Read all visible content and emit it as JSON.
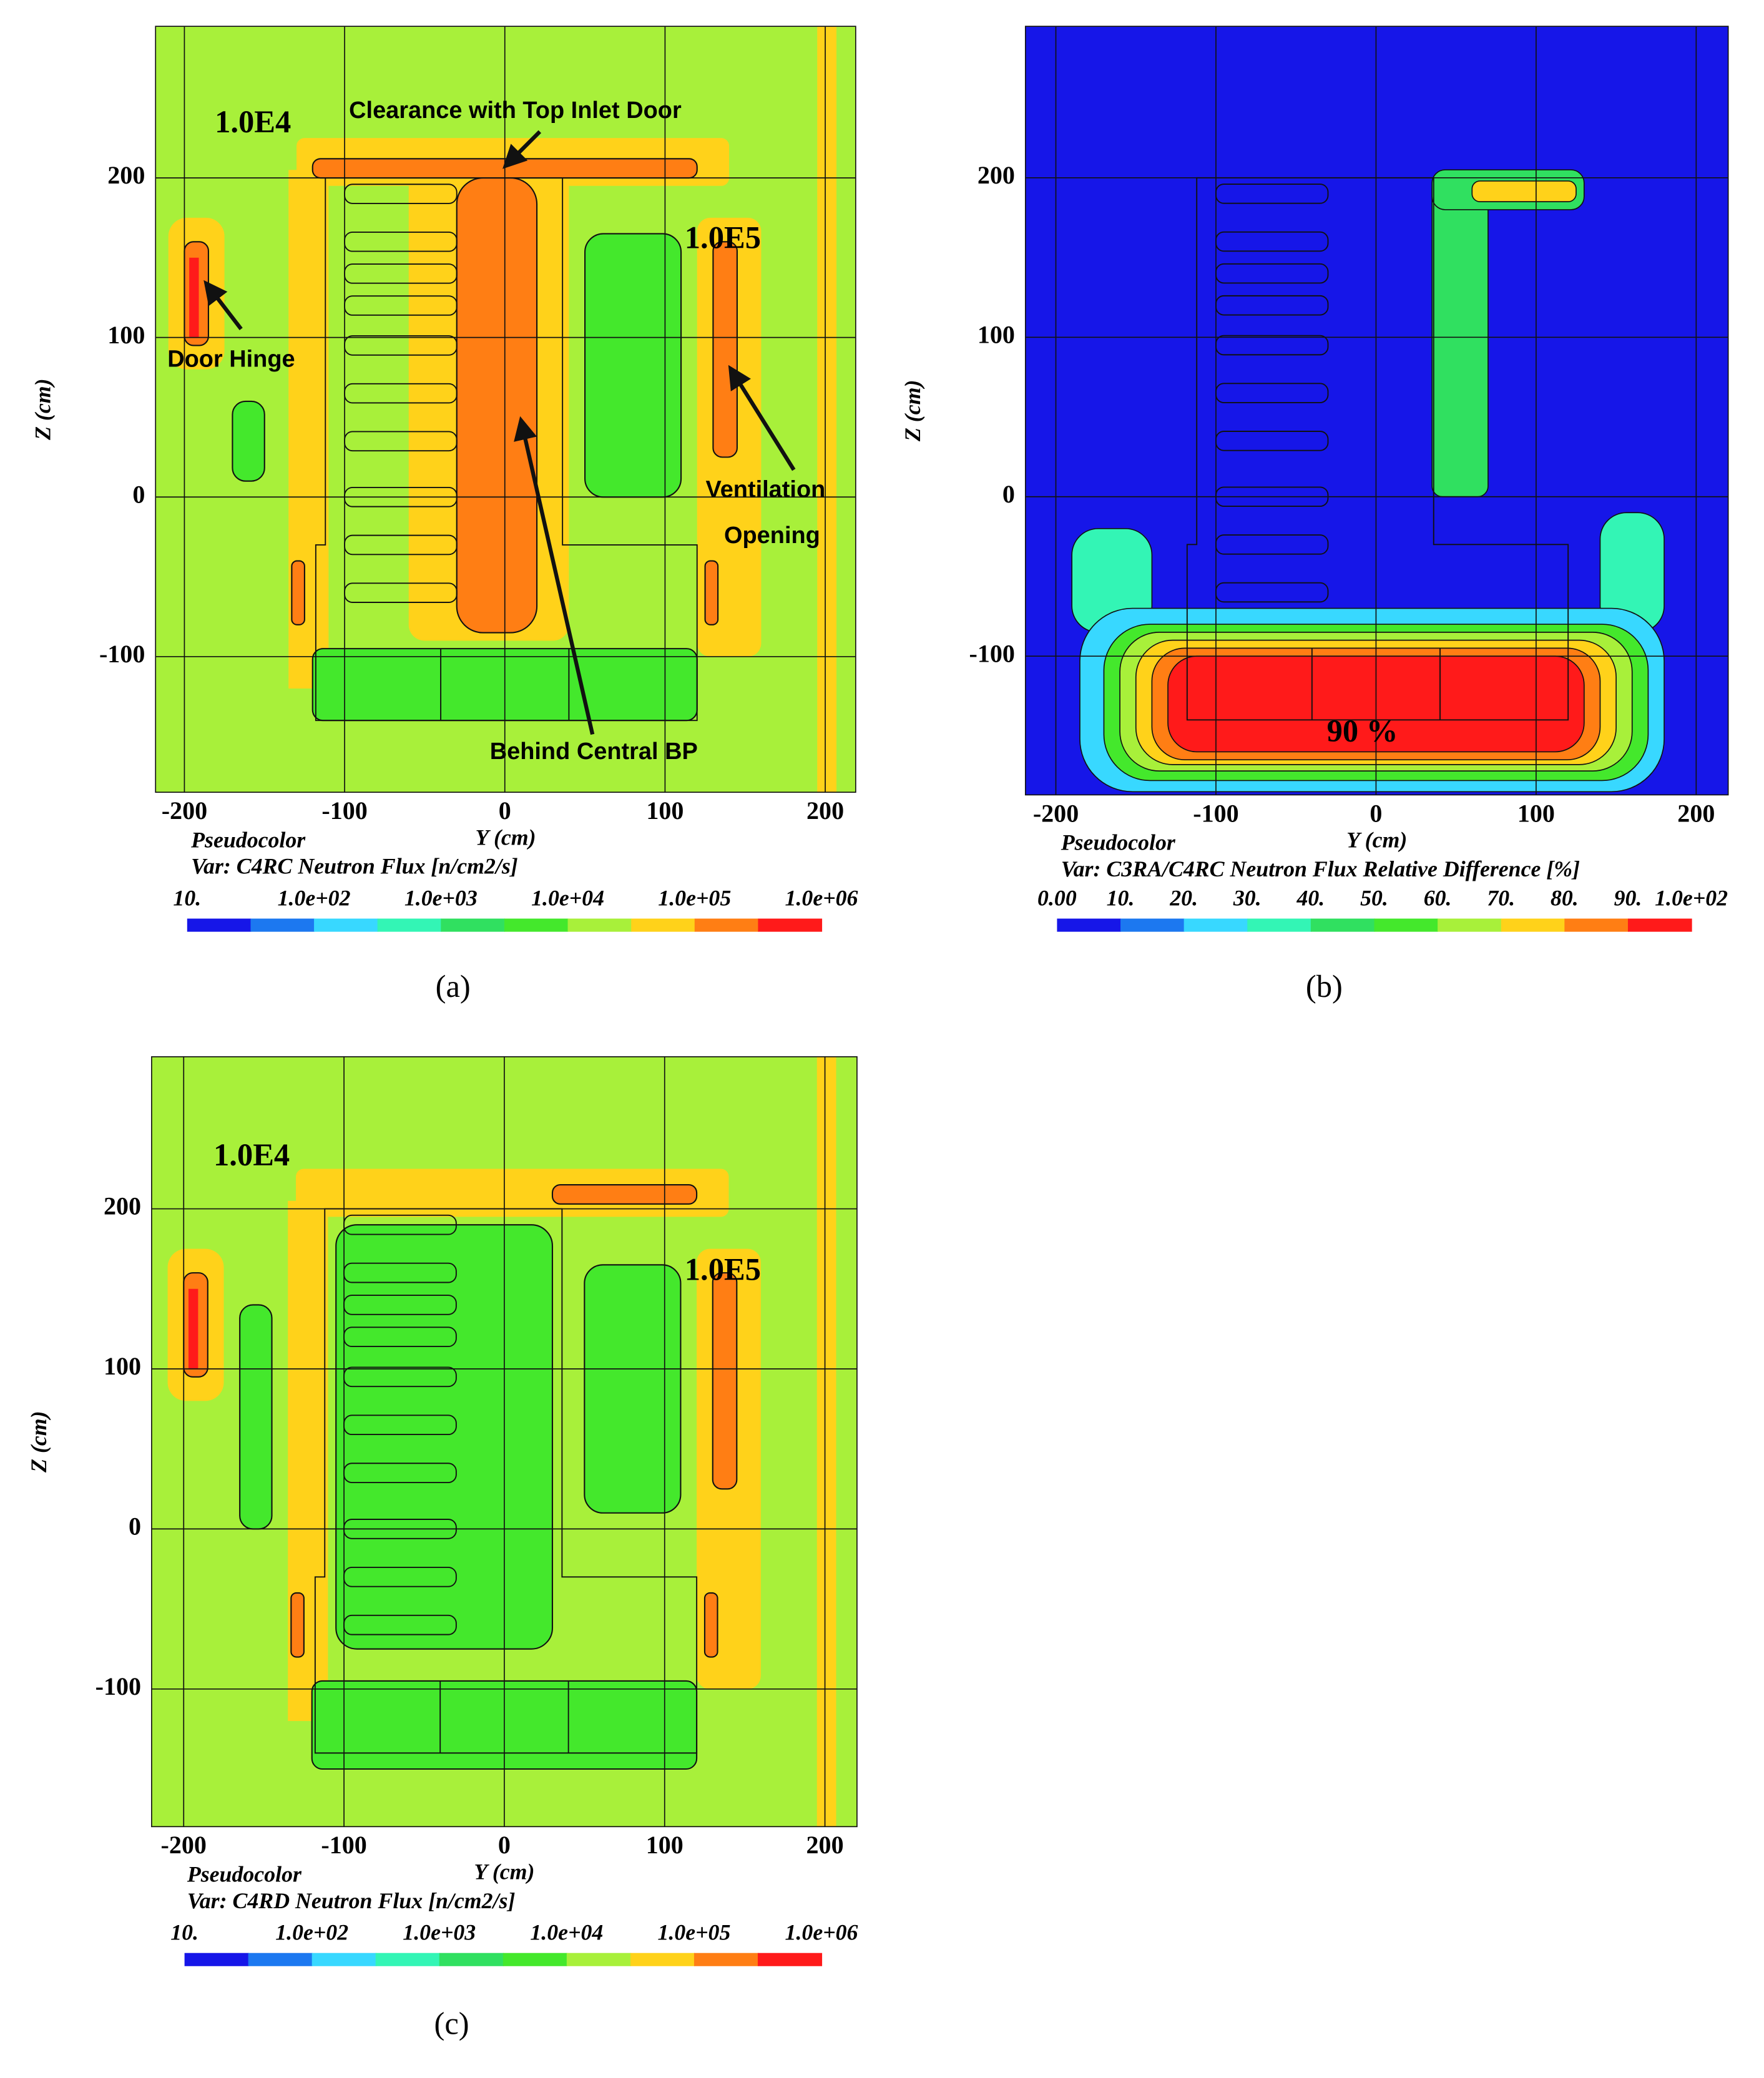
{
  "chart_data": [
    {
      "type": "pseudocolor",
      "label": "(a)",
      "xlabel": "Y (cm)",
      "ylabel": "Z (cm)",
      "plot_name": "Pseudocolor",
      "variable": "Var: C4RC Neutron Flux [n/cm2/s]",
      "xlim": [
        -218,
        219
      ],
      "ylim": [
        -185,
        295
      ],
      "xticks": [
        -200,
        -100,
        0,
        100,
        200
      ],
      "yticks": [
        -100,
        0,
        100,
        200
      ],
      "grid": true,
      "colorbar": {
        "labels": [
          "10.",
          "1.0e+02",
          "1.0e+03",
          "1.0e+04",
          "1.0e+05",
          "1.0e+06"
        ],
        "colors": [
          "#1616e8",
          "#1c78f0",
          "#38d8ff",
          "#33f5b5",
          "#30e060",
          "#44e82c",
          "#a8f03a",
          "#ffd21a",
          "#ff7e14",
          "#ff1a1a"
        ]
      },
      "annotations": [
        "1.0E4",
        "Clearance with Top Inlet Door",
        "1.0E5",
        "Door Hinge",
        "Ventilation",
        "Opening",
        "Behind Central BP"
      ]
    },
    {
      "type": "pseudocolor",
      "label": "(b)",
      "xlabel": "Y (cm)",
      "ylabel": "Z (cm)",
      "plot_name": "Pseudocolor",
      "variable": "Var: C3RA/C4RC Neutron Flux Relative Difference [%]",
      "xlim": [
        -219,
        220
      ],
      "ylim": [
        -187,
        295
      ],
      "xticks": [
        -200,
        -100,
        0,
        100,
        200
      ],
      "yticks": [
        -100,
        0,
        100,
        200
      ],
      "grid": true,
      "colorbar": {
        "labels": [
          "0.00",
          "10.",
          "20.",
          "30.",
          "40.",
          "50.",
          "60.",
          "70.",
          "80.",
          "90.",
          "1.0e+02"
        ],
        "colors": [
          "#1616e8",
          "#1c78f0",
          "#38d8ff",
          "#33f5b5",
          "#30e060",
          "#44e82c",
          "#a8f03a",
          "#ffd21a",
          "#ff7e14",
          "#ff1a1a"
        ]
      },
      "annotations": [
        "90 %"
      ]
    },
    {
      "type": "pseudocolor",
      "label": "(c)",
      "xlabel": "Y (cm)",
      "ylabel": "Z (cm)",
      "plot_name": "Pseudocolor",
      "variable": "Var: C4RD Neutron Flux [n/cm2/s]",
      "xlim": [
        -220,
        220
      ],
      "ylim": [
        -186,
        295
      ],
      "xticks": [
        -200,
        -100,
        0,
        100,
        200
      ],
      "yticks": [
        -100,
        0,
        100,
        200
      ],
      "grid": true,
      "colorbar": {
        "labels": [
          "10.",
          "1.0e+02",
          "1.0e+03",
          "1.0e+04",
          "1.0e+05",
          "1.0e+06"
        ],
        "colors": [
          "#1616e8",
          "#1c78f0",
          "#38d8ff",
          "#33f5b5",
          "#30e060",
          "#44e82c",
          "#a8f03a",
          "#ffd21a",
          "#ff7e14",
          "#ff1a1a"
        ]
      },
      "annotations": [
        "1.0E4",
        "1.0E5"
      ]
    }
  ]
}
